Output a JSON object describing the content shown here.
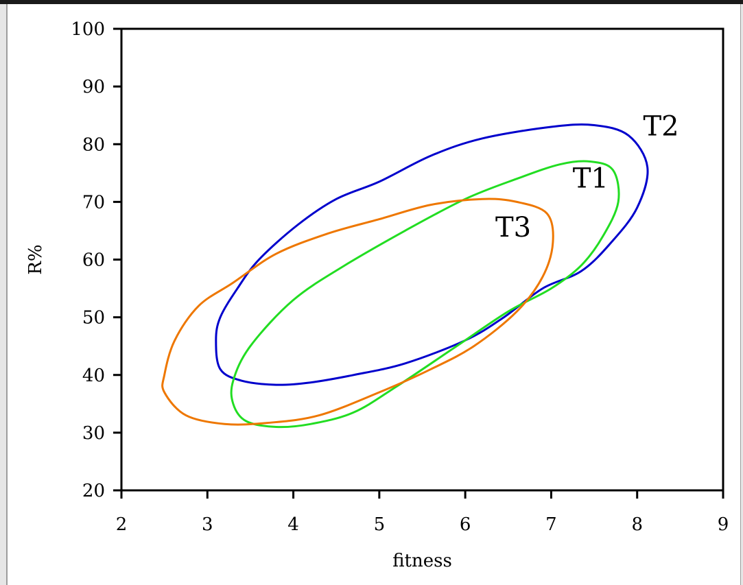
{
  "chart_data": {
    "type": "line",
    "title": "",
    "xlabel": "fitness",
    "ylabel": "R%",
    "xlim": [
      2,
      9
    ],
    "ylim": [
      20,
      100
    ],
    "x_ticks": [
      2,
      3,
      4,
      5,
      6,
      7,
      8,
      9
    ],
    "y_ticks": [
      20,
      30,
      40,
      50,
      60,
      70,
      80,
      90,
      100
    ],
    "grid": false,
    "series": [
      {
        "name": "T2",
        "color": "#0000cc",
        "label_at": [
          8.07,
          81.5
        ],
        "points": [
          [
            3.1,
            46
          ],
          [
            3.15,
            50
          ],
          [
            3.35,
            55
          ],
          [
            3.6,
            60
          ],
          [
            4.05,
            66
          ],
          [
            4.5,
            70.5
          ],
          [
            5.0,
            73.5
          ],
          [
            5.6,
            78
          ],
          [
            6.2,
            81
          ],
          [
            7.0,
            83
          ],
          [
            7.5,
            83.3
          ],
          [
            7.9,
            81.5
          ],
          [
            8.12,
            76
          ],
          [
            8.0,
            69
          ],
          [
            7.7,
            63
          ],
          [
            7.35,
            58
          ],
          [
            6.9,
            55
          ],
          [
            6.45,
            50
          ],
          [
            6.0,
            46
          ],
          [
            5.3,
            42
          ],
          [
            4.7,
            40
          ],
          [
            4.2,
            38.7
          ],
          [
            3.8,
            38.3
          ],
          [
            3.4,
            39
          ],
          [
            3.15,
            41
          ],
          [
            3.1,
            46
          ]
        ]
      },
      {
        "name": "T1",
        "color": "#22dd22",
        "label_at": [
          7.25,
          72.5
        ],
        "points": [
          [
            3.3,
            39
          ],
          [
            3.5,
            45
          ],
          [
            4.0,
            53
          ],
          [
            4.6,
            59
          ],
          [
            5.3,
            65
          ],
          [
            6.0,
            70.5
          ],
          [
            6.6,
            74
          ],
          [
            7.1,
            76.5
          ],
          [
            7.45,
            77
          ],
          [
            7.72,
            75.5
          ],
          [
            7.78,
            70
          ],
          [
            7.6,
            64
          ],
          [
            7.35,
            59
          ],
          [
            7.0,
            55
          ],
          [
            6.5,
            51
          ],
          [
            5.9,
            45
          ],
          [
            5.2,
            38
          ],
          [
            4.7,
            33.5
          ],
          [
            4.2,
            31.5
          ],
          [
            3.8,
            31
          ],
          [
            3.45,
            32
          ],
          [
            3.3,
            35
          ],
          [
            3.3,
            39
          ]
        ]
      },
      {
        "name": "T3",
        "color": "#ee7700",
        "label_at": [
          6.35,
          64
        ],
        "points": [
          [
            2.5,
            40
          ],
          [
            2.62,
            46
          ],
          [
            2.9,
            52
          ],
          [
            3.3,
            56
          ],
          [
            3.8,
            61
          ],
          [
            4.4,
            64.5
          ],
          [
            5.0,
            67
          ],
          [
            5.6,
            69.5
          ],
          [
            6.2,
            70.5
          ],
          [
            6.6,
            70
          ],
          [
            6.95,
            68
          ],
          [
            7.02,
            63
          ],
          [
            6.9,
            57
          ],
          [
            6.6,
            51
          ],
          [
            6.1,
            45
          ],
          [
            5.6,
            41
          ],
          [
            5.0,
            37
          ],
          [
            4.3,
            33
          ],
          [
            3.7,
            31.7
          ],
          [
            3.2,
            31.5
          ],
          [
            2.75,
            33
          ],
          [
            2.5,
            37
          ],
          [
            2.5,
            40
          ]
        ]
      }
    ]
  }
}
